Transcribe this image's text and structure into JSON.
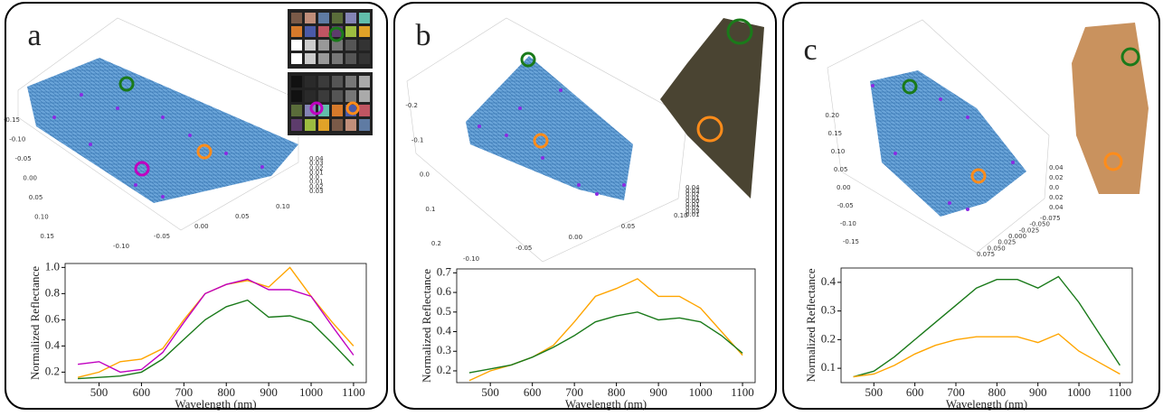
{
  "panels": [
    {
      "label": "a",
      "surface_ticks": {
        "left": [
          "-0.15",
          "-0.10",
          "-0.05",
          "0.00",
          "0.05",
          "0.10",
          "0.15"
        ],
        "bottom": [
          "-0.10",
          "-0.05",
          "0.00",
          "0.05",
          "0.10"
        ],
        "z": [
          "0.04",
          "0.03",
          "0.02",
          "0.01",
          "0.0",
          "0.01",
          "0.02",
          "0.03"
        ]
      }
    },
    {
      "label": "b",
      "surface_ticks": {
        "left": [
          "-0.2",
          "-0.1",
          "0.0",
          "0.1",
          "0.2"
        ],
        "bottom": [
          "-0.10",
          "-0.05",
          "0.00",
          "0.05",
          "0.10"
        ],
        "z": [
          "0.04",
          "0.03",
          "0.02",
          "0.01",
          "0.00",
          "0.01",
          "0.02",
          "0.03",
          "0.01"
        ]
      }
    },
    {
      "label": "c",
      "surface_ticks": {
        "left": [
          "0.20",
          "0.15",
          "0.10",
          "0.05",
          "0.00",
          "-0.05",
          "-0.10",
          "-0.15"
        ],
        "bottom": [
          "-0.075",
          "-0.050",
          "-0.025",
          "0.000",
          "0.025",
          "0.050",
          "0.075"
        ],
        "z": [
          "0.04",
          "0.02",
          "0.0",
          "0.02",
          "0.04"
        ]
      }
    }
  ],
  "chart_data": [
    {
      "type": "line",
      "x_label": "Wavelength (nm)",
      "y_label": "Normalized Reflectance",
      "x": [
        450,
        500,
        550,
        600,
        650,
        700,
        750,
        800,
        850,
        900,
        950,
        1000,
        1050,
        1100
      ],
      "series": [
        {
          "color": "#ffa500",
          "values": [
            0.16,
            0.2,
            0.28,
            0.3,
            0.38,
            0.6,
            0.8,
            0.87,
            0.9,
            0.85,
            1.0,
            0.78,
            0.58,
            0.4
          ]
        },
        {
          "color": "#c000c0",
          "values": [
            0.26,
            0.28,
            0.2,
            0.22,
            0.35,
            0.58,
            0.8,
            0.87,
            0.91,
            0.83,
            0.83,
            0.78,
            0.55,
            0.33
          ]
        },
        {
          "color": "#1a7a1a",
          "values": [
            0.15,
            0.16,
            0.17,
            0.2,
            0.3,
            0.45,
            0.6,
            0.7,
            0.75,
            0.62,
            0.63,
            0.58,
            0.42,
            0.25
          ]
        }
      ],
      "xlim": [
        420,
        1130
      ],
      "xticks": [
        500,
        600,
        700,
        800,
        900,
        1000,
        1100
      ],
      "ylim": [
        0.12,
        1.03
      ],
      "yticks": [
        0.2,
        0.4,
        0.6,
        0.8,
        {
          "value": 1,
          "label": "1.0"
        }
      ]
    },
    {
      "type": "line",
      "x_label": "Wavelength (nm)",
      "y_label": "Normalized Reflectance",
      "x": [
        450,
        500,
        550,
        600,
        650,
        700,
        750,
        800,
        850,
        900,
        950,
        1000,
        1050,
        1100
      ],
      "series": [
        {
          "color": "#ffa500",
          "values": [
            0.15,
            0.2,
            0.23,
            0.27,
            0.33,
            0.45,
            0.58,
            0.62,
            0.67,
            0.58,
            0.58,
            0.52,
            0.4,
            0.28
          ]
        },
        {
          "color": "#1a7a1a",
          "values": [
            0.19,
            0.21,
            0.23,
            0.27,
            0.32,
            0.38,
            0.45,
            0.48,
            0.5,
            0.46,
            0.47,
            0.45,
            0.38,
            0.29
          ]
        }
      ],
      "xlim": [
        420,
        1130
      ],
      "xticks": [
        500,
        600,
        700,
        800,
        900,
        1000,
        1100
      ],
      "ylim": [
        0.14,
        0.72
      ],
      "yticks": [
        0.2,
        0.3,
        0.4,
        0.5,
        0.6,
        0.7
      ]
    },
    {
      "type": "line",
      "x_label": "Wavelength (nm)",
      "y_label": "Normalized Reflectance",
      "x": [
        450,
        500,
        550,
        600,
        650,
        700,
        750,
        800,
        850,
        900,
        950,
        1000,
        1050,
        1100
      ],
      "series": [
        {
          "color": "#1a7a1a",
          "values": [
            0.07,
            0.09,
            0.14,
            0.2,
            0.26,
            0.32,
            0.38,
            0.41,
            0.41,
            0.38,
            0.42,
            0.33,
            0.22,
            0.11
          ]
        },
        {
          "color": "#ffa500",
          "values": [
            0.07,
            0.08,
            0.11,
            0.15,
            0.18,
            0.2,
            0.21,
            0.21,
            0.21,
            0.19,
            0.22,
            0.16,
            0.12,
            0.08
          ]
        }
      ],
      "xlim": [
        420,
        1130
      ],
      "xticks": [
        500,
        600,
        700,
        800,
        900,
        1000,
        1100
      ],
      "ylim": [
        0.05,
        0.45
      ],
      "yticks": [
        0.1,
        0.2,
        0.3,
        0.4
      ]
    }
  ]
}
